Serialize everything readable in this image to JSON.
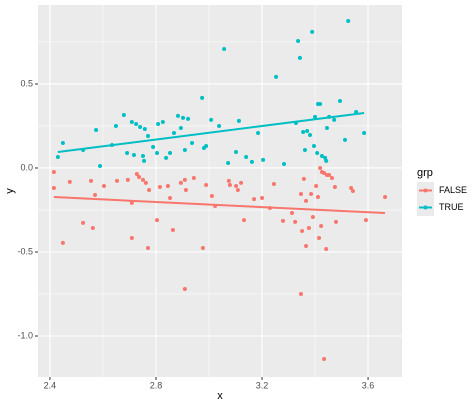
{
  "chart_data": {
    "type": "scatter",
    "x_label": "x",
    "y_label": "y",
    "legend_title": "grp",
    "legend": "right",
    "grid": true,
    "minor_grid": true,
    "background": "#ebebeb",
    "xlim": [
      2.355,
      3.728
    ],
    "ylim": [
      -1.244,
      0.97
    ],
    "xticks": [
      2.4,
      2.8,
      3.2,
      3.6
    ],
    "yticks": [
      {
        "value": -1.0,
        "label": "-1.0"
      },
      -0.5,
      {
        "value": 0.0,
        "label": "0.0"
      },
      0.5
    ],
    "series": [
      {
        "name": "FALSE",
        "color": "#F8766D",
        "x": [
          2.415,
          2.415,
          2.449,
          2.475,
          2.525,
          2.555,
          2.562,
          2.57,
          2.604,
          2.653,
          2.694,
          2.709,
          2.709,
          2.728,
          2.736,
          2.751,
          2.762,
          2.77,
          2.774,
          2.804,
          2.815,
          2.845,
          2.853,
          2.864,
          2.894,
          2.909,
          2.909,
          2.913,
          2.943,
          2.977,
          2.989,
          3.011,
          3.023,
          3.075,
          3.079,
          3.102,
          3.109,
          3.121,
          3.132,
          3.17,
          3.2,
          3.23,
          3.245,
          3.279,
          3.313,
          3.325,
          3.347,
          3.351,
          3.358,
          3.366,
          3.366,
          3.377,
          3.385,
          3.392,
          3.404,
          3.411,
          3.415,
          3.419,
          3.423,
          3.426,
          3.434,
          3.442,
          3.445,
          3.453,
          3.464,
          3.475,
          3.479,
          3.536,
          3.543,
          3.592,
          3.664,
          3.347,
          3.434
        ],
        "values": [
          -0.024,
          -0.119,
          -0.446,
          -0.083,
          -0.327,
          -0.077,
          -0.357,
          -0.161,
          -0.107,
          -0.077,
          -0.071,
          -0.208,
          -0.417,
          -0.036,
          -0.054,
          -0.071,
          -0.089,
          -0.476,
          -0.131,
          -0.31,
          -0.113,
          -0.107,
          -0.179,
          -0.369,
          -0.089,
          -0.071,
          -0.72,
          -0.131,
          -0.06,
          -0.476,
          -0.101,
          -0.167,
          -0.226,
          -0.077,
          -0.101,
          -0.107,
          -0.131,
          -0.089,
          -0.31,
          -0.185,
          -0.179,
          -0.238,
          -0.095,
          -0.315,
          -0.268,
          -0.321,
          -0.155,
          -0.375,
          -0.065,
          -0.196,
          -0.464,
          -0.357,
          -0.155,
          -0.292,
          -0.107,
          -0.173,
          -0.417,
          0.0,
          -0.345,
          -0.024,
          -0.03,
          -0.482,
          -0.042,
          -0.042,
          -0.06,
          -0.113,
          -0.321,
          -0.119,
          -0.137,
          -0.31,
          -0.173,
          -0.75,
          -1.137
        ],
        "fit": {
          "x": [
            2.415,
            3.664
          ],
          "y": [
            -0.173,
            -0.268
          ]
        }
      },
      {
        "name": "TRUE",
        "color": "#00BFC4",
        "x": [
          2.43,
          2.449,
          2.525,
          2.574,
          2.589,
          2.634,
          2.649,
          2.679,
          2.691,
          2.709,
          2.717,
          2.725,
          2.74,
          2.751,
          2.755,
          2.758,
          2.77,
          2.789,
          2.804,
          2.808,
          2.826,
          2.838,
          2.853,
          2.868,
          2.883,
          2.894,
          2.902,
          2.909,
          2.921,
          2.936,
          2.974,
          2.981,
          2.989,
          3.008,
          3.038,
          3.057,
          3.072,
          3.102,
          3.113,
          3.14,
          3.162,
          3.185,
          3.204,
          3.253,
          3.283,
          3.328,
          3.336,
          3.343,
          3.355,
          3.362,
          3.37,
          3.381,
          3.389,
          3.396,
          3.4,
          3.408,
          3.411,
          3.419,
          3.426,
          3.438,
          3.442,
          3.445,
          3.453,
          3.472,
          3.494,
          3.513,
          3.525,
          3.555,
          3.585
        ],
        "values": [
          0.065,
          0.149,
          0.107,
          0.226,
          0.012,
          0.137,
          0.25,
          0.315,
          0.089,
          0.274,
          0.077,
          0.262,
          0.244,
          0.071,
          0.042,
          0.232,
          0.19,
          0.125,
          0.089,
          0.262,
          0.274,
          0.06,
          0.089,
          0.208,
          0.31,
          0.238,
          0.298,
          0.107,
          0.292,
          0.149,
          0.417,
          0.119,
          0.131,
          0.286,
          0.25,
          0.708,
          0.03,
          0.095,
          0.28,
          0.065,
          0.036,
          0.208,
          0.048,
          0.542,
          0.024,
          0.268,
          0.756,
          0.655,
          0.214,
          0.107,
          0.22,
          0.196,
          0.81,
          0.131,
          0.304,
          0.089,
          0.381,
          0.381,
          0.071,
          0.06,
          0.042,
          0.238,
          0.304,
          0.286,
          0.399,
          0.167,
          0.875,
          0.333,
          0.208
        ],
        "fit": {
          "x": [
            2.43,
            3.585
          ],
          "y": [
            0.095,
            0.327
          ]
        }
      }
    ]
  }
}
